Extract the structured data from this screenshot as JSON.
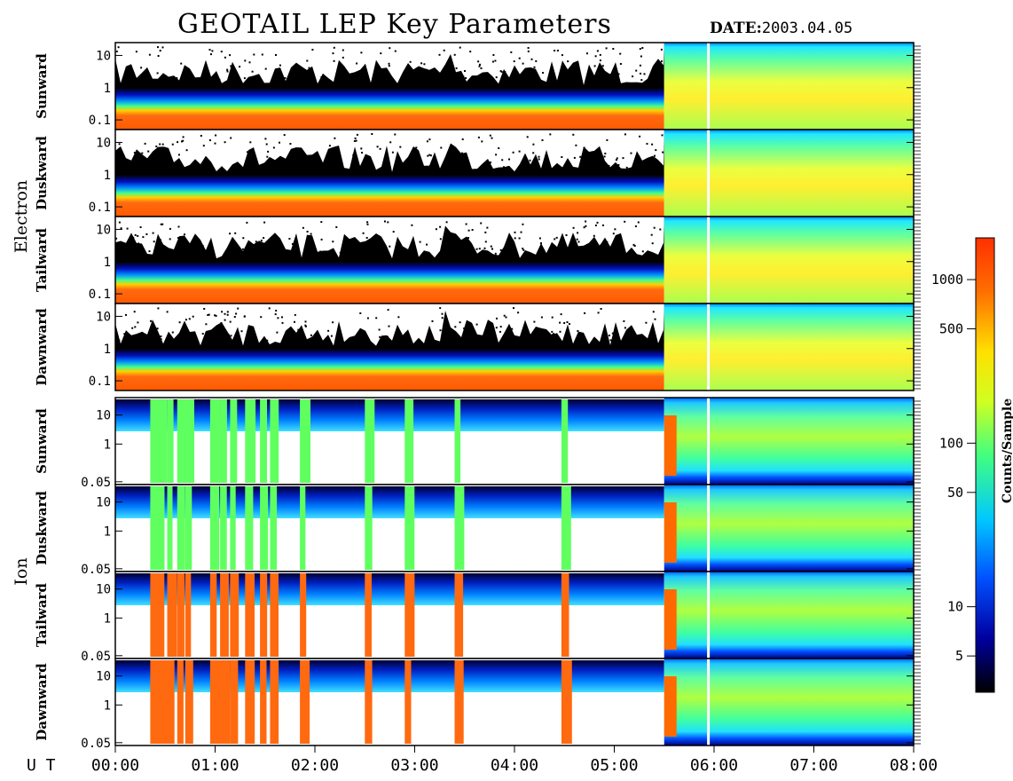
{
  "header": {
    "title": "GEOTAIL LEP Key Parameters",
    "date_label": "DATE:",
    "date_value": "2003.04.05"
  },
  "groups": {
    "electron": "Electron",
    "ion": "Ion"
  },
  "chart_data": {
    "type": "heatmap",
    "title": "GEOTAIL LEP Key Parameters",
    "xlabel": "U T",
    "x_ticks": [
      "00:00",
      "01:00",
      "02:00",
      "03:00",
      "04:00",
      "05:00",
      "06:00",
      "07:00",
      "08:00"
    ],
    "x_range_hours": [
      0,
      8
    ],
    "y_scale": "log",
    "panels": [
      {
        "group": "Electron",
        "label": "Sunward",
        "yticks": [
          "10",
          "1",
          "0.1"
        ],
        "yrange": [
          0.05,
          25
        ]
      },
      {
        "group": "Electron",
        "label": "Duskward",
        "yticks": [
          "10",
          "1",
          "0.1"
        ],
        "yrange": [
          0.05,
          25
        ]
      },
      {
        "group": "Electron",
        "label": "Tailward",
        "yticks": [
          "10",
          "1",
          "0.1"
        ],
        "yrange": [
          0.05,
          25
        ]
      },
      {
        "group": "Electron",
        "label": "Dawnward",
        "yticks": [
          "10",
          "1",
          "0.1"
        ],
        "yrange": [
          0.05,
          25
        ]
      },
      {
        "group": "Ion",
        "label": "Sunward",
        "yticks": [
          "10",
          "1",
          "0.05"
        ],
        "yrange": [
          0.04,
          40
        ]
      },
      {
        "group": "Ion",
        "label": "Duskward",
        "yticks": [
          "10",
          "1",
          "0.05"
        ],
        "yrange": [
          0.04,
          40
        ]
      },
      {
        "group": "Ion",
        "label": "Tailward",
        "yticks": [
          "10",
          "1",
          "0.05"
        ],
        "yrange": [
          0.04,
          40
        ]
      },
      {
        "group": "Ion",
        "label": "Dawnward",
        "yticks": [
          "10",
          "1",
          "0.05"
        ],
        "yrange": [
          0.04,
          40
        ]
      }
    ],
    "colorbar": {
      "label": "Counts/Sample",
      "scale": "log",
      "range": [
        3,
        1800
      ],
      "ticks": [
        {
          "label": "1000",
          "value": 1000
        },
        {
          "label": "500",
          "value": 500
        },
        {
          "label": "100",
          "value": 100
        },
        {
          "label": "50",
          "value": 50
        },
        {
          "label": "10",
          "value": 10
        },
        {
          "label": "5",
          "value": 5
        }
      ],
      "colors": [
        "#000000",
        "#0000a0",
        "#0050ff",
        "#00c8ff",
        "#40ff80",
        "#d0ff20",
        "#ffe000",
        "#ff7000",
        "#ff3000"
      ]
    },
    "features": {
      "magnetosheath_entry_hour": 5.5,
      "data_gap_hour": 5.93,
      "electron_dense_band": "0.05 - 0.3",
      "notes_on_color": "red/orange low-energy electron band; sparse black speckles above; green-yellow broadband after entry"
    }
  }
}
